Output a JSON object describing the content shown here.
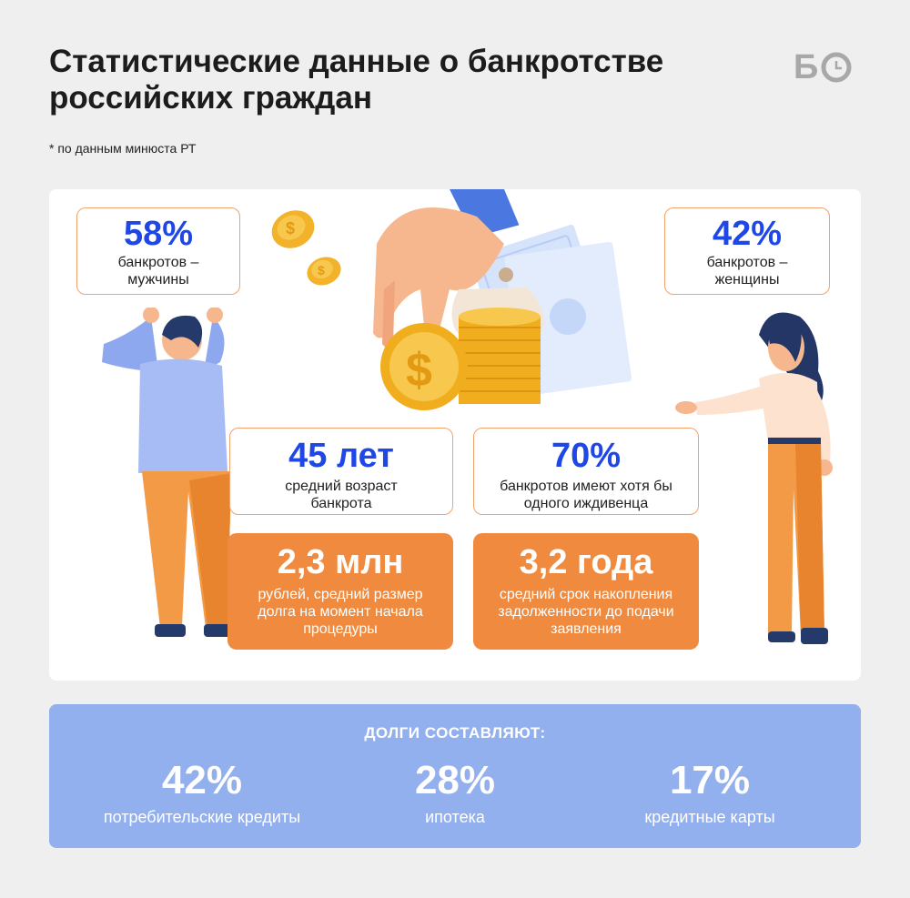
{
  "header": {
    "title": "Статистические данные о банкротстве российских граждан",
    "subtitle": "* по данным минюста РТ",
    "logo_text": "Б"
  },
  "stats": {
    "men": {
      "value": "58%",
      "label": "банкротов – мужчины"
    },
    "women": {
      "value": "42%",
      "label": "банкротов – женщины"
    },
    "age": {
      "value": "45 лет",
      "label": "средний возраст банкрота"
    },
    "dependents": {
      "value": "70%",
      "label": "банкротов имеют хотя бы одного иждивенца"
    },
    "debt_size": {
      "value": "2,3 млн",
      "label": "рублей, средний размер долга на момент начала процедуры"
    },
    "accumulation": {
      "value": "3,2 года",
      "label": "средний срок накопления задолженности до подачи заявления"
    }
  },
  "debts": {
    "heading": "ДОЛГИ СОСТАВЛЯЮТ:",
    "items": [
      {
        "value": "42%",
        "label": "потребительские кредиты"
      },
      {
        "value": "28%",
        "label": "ипотека"
      },
      {
        "value": "17%",
        "label": "кредитные карты"
      }
    ]
  },
  "colors": {
    "accent_blue": "#1e47e6",
    "accent_orange": "#ef8a3e",
    "panel_blue": "#93b0ee"
  },
  "icons": [
    "clock-icon",
    "man-illustration",
    "woman-illustration",
    "hand-money-illustration",
    "dollar-coin-icon"
  ]
}
